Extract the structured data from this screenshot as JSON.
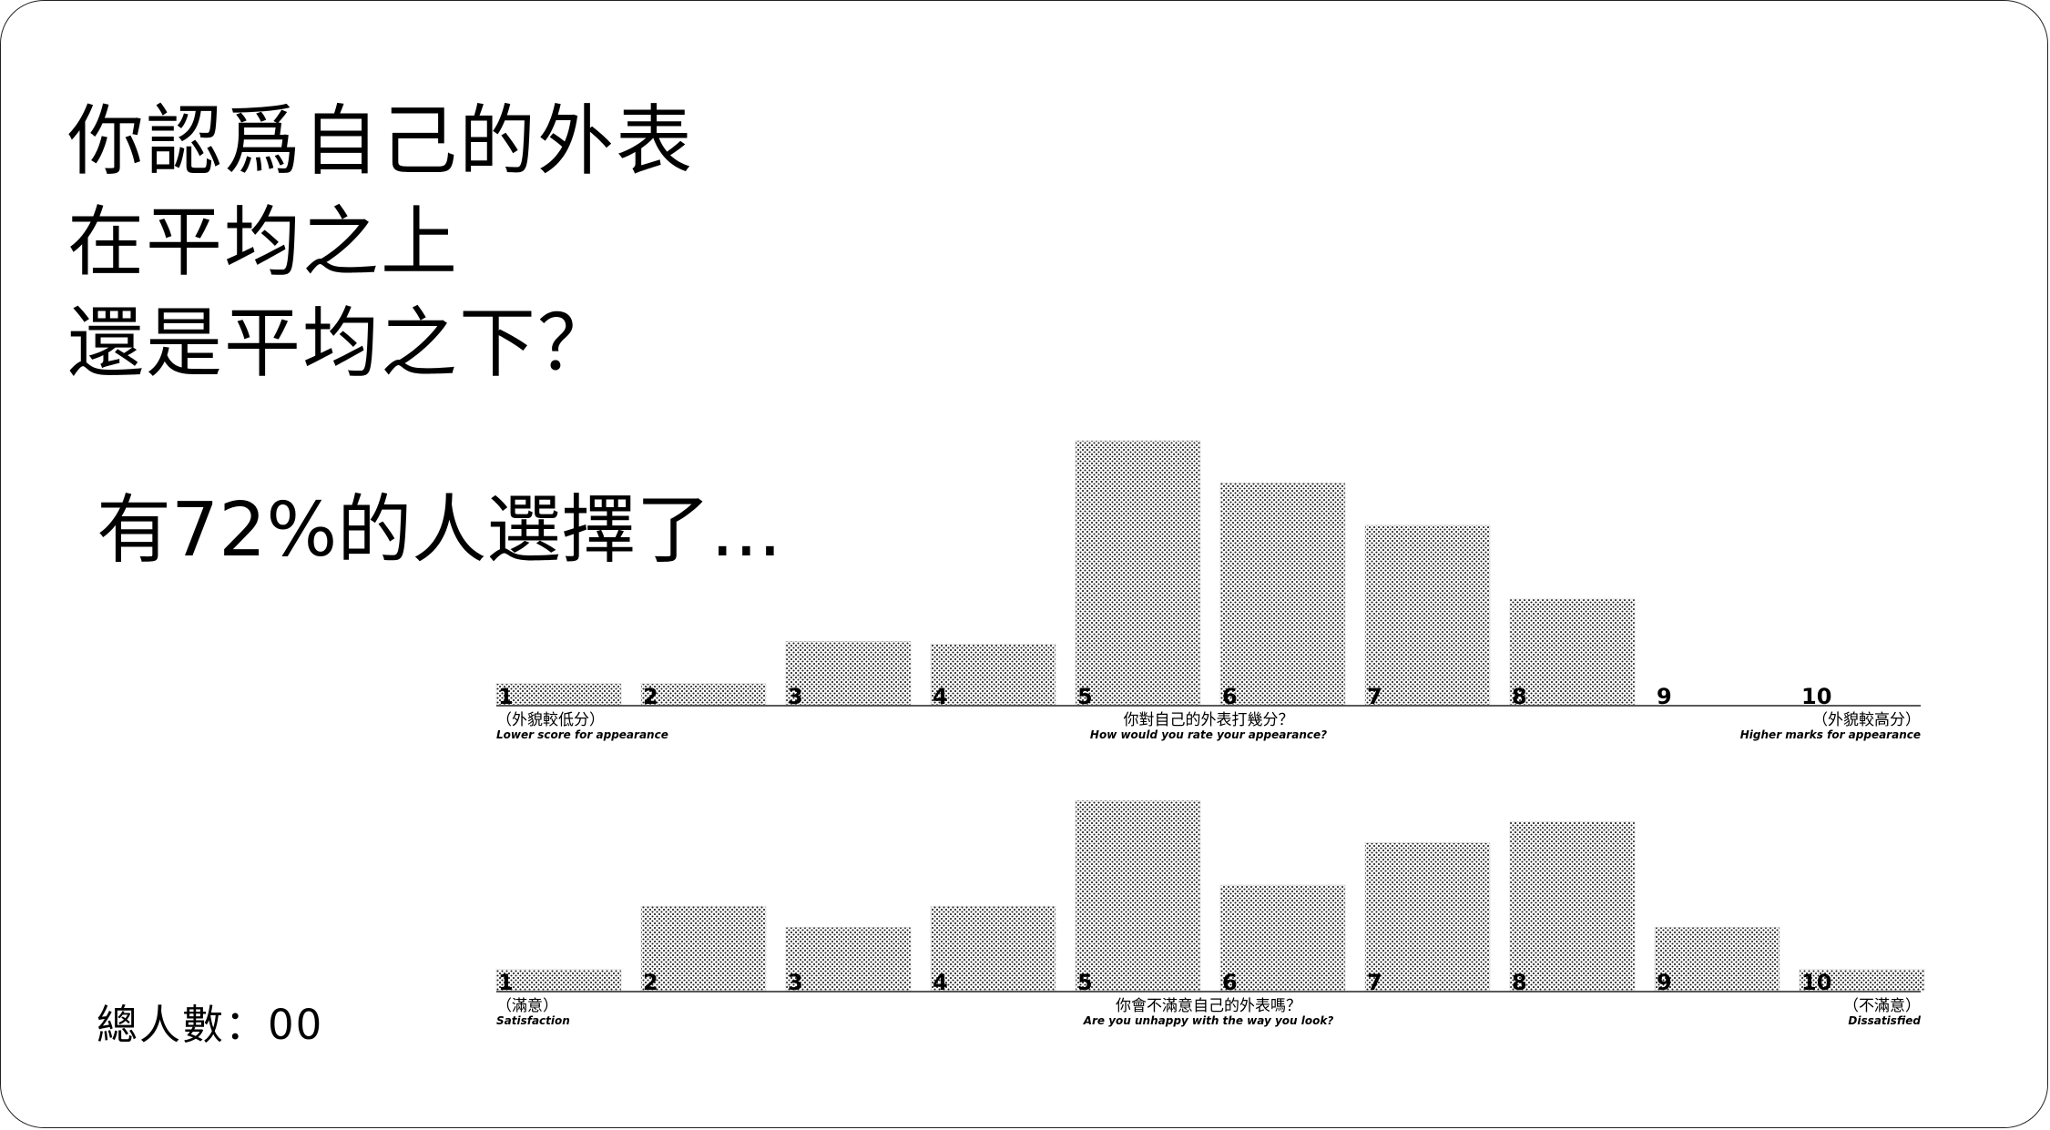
{
  "title_lines": [
    "你認爲自己的外表",
    "在平均之上",
    "還是平均之下？"
  ],
  "subtitle": "有72%的人選擇了...",
  "total_label": "總人數：00",
  "colors": {
    "bar_fill": "#ffffff",
    "bar_dot": "#1a1a1a",
    "axis": "#222222",
    "text": "#000000"
  },
  "chart_data": [
    {
      "type": "bar",
      "categories": [
        "1",
        "2",
        "3",
        "4",
        "5",
        "6",
        "7",
        "8",
        "9",
        "10"
      ],
      "values": [
        4,
        4,
        12,
        11.5,
        50,
        42,
        34,
        20,
        0,
        0
      ],
      "left_label": "（外貌較低分）",
      "left_sublabel": "Lower score for appearance",
      "center_label": "你對自己的外表打幾分？",
      "center_sublabel": "How would you rate your appearance?",
      "right_label": "（外貌較高分）",
      "right_sublabel": "Higher marks for appearance",
      "grid": false
    },
    {
      "type": "bar",
      "categories": [
        "1",
        "2",
        "3",
        "4",
        "5",
        "6",
        "7",
        "8",
        "9",
        "10"
      ],
      "values": [
        4,
        16,
        12,
        16,
        36,
        20,
        28,
        32,
        12,
        4
      ],
      "left_label": "（滿意）",
      "left_sublabel": "Satisfaction",
      "center_label": "你會不滿意自己的外表嗎？",
      "center_sublabel": "Are you unhappy with the way you look?",
      "right_label": "（不滿意）",
      "right_sublabel": "Dissatisfied",
      "grid": false
    }
  ]
}
